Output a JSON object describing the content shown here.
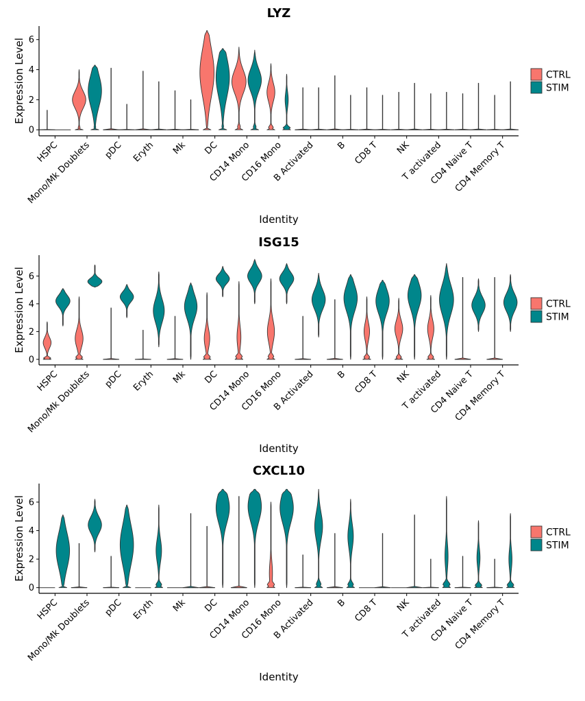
{
  "colors": {
    "CTRL": "#F8766D",
    "STIM": "#00868B",
    "outline": "#333333",
    "axis": "#000000"
  },
  "legend": {
    "entries": [
      "CTRL",
      "STIM"
    ],
    "placement": "right"
  },
  "chart_data": [
    {
      "type": "violin",
      "title": "LYZ",
      "xlabel": "Identity",
      "ylabel": "Expression Level",
      "ylim": [
        -0.4,
        6.9
      ],
      "yticks": [
        0,
        2,
        4,
        6
      ],
      "categories": [
        "HSPC",
        "Mono/Mk Doublets",
        "pDC",
        "Eryth",
        "Mk",
        "DC",
        "CD14 Mono",
        "CD16 Mono",
        "B Activated",
        "B",
        "CD8 T",
        "NK",
        "T activated",
        "CD4 Naive T",
        "CD4 Memory T"
      ],
      "series": [
        {
          "name": "CTRL",
          "max": [
            1.3,
            4.0,
            4.1,
            3.9,
            2.6,
            6.6,
            5.5,
            4.4,
            2.8,
            3.6,
            2.8,
            2.5,
            2.4,
            2.4,
            2.3
          ],
          "shape": [
            [
              "spike"
            ],
            [
              "bi",
              2.0,
              0.85,
              0.2
            ],
            [
              "spike"
            ],
            [
              "spike"
            ],
            [
              "spike"
            ],
            [
              "wide",
              3.8,
              0.9,
              0.1
            ],
            [
              "bi",
              3.2,
              0.9,
              0.3
            ],
            [
              "bi",
              2.5,
              0.5,
              0.5
            ],
            [
              "spike"
            ],
            [
              "spike"
            ],
            [
              "spike"
            ],
            [
              "spike"
            ],
            [
              "spike"
            ],
            [
              "spike"
            ],
            [
              "spike"
            ]
          ]
        },
        {
          "name": "STIM",
          "max": [
            0.0,
            4.3,
            1.7,
            3.2,
            2.0,
            5.4,
            5.3,
            3.7,
            2.8,
            2.3,
            2.3,
            3.1,
            2.5,
            3.1,
            3.2
          ],
          "shape": [
            [
              "none"
            ],
            [
              "wide",
              2.6,
              0.85,
              0.15
            ],
            [
              "spike"
            ],
            [
              "spike"
            ],
            [
              "spike"
            ],
            [
              "wide",
              3.5,
              0.85,
              0.15
            ],
            [
              "bi",
              3.3,
              0.85,
              0.3
            ],
            [
              "bi",
              2.0,
              0.2,
              0.75
            ],
            [
              "spike"
            ],
            [
              "spike"
            ],
            [
              "spike"
            ],
            [
              "spike"
            ],
            [
              "spike"
            ],
            [
              "spike"
            ],
            [
              "spike"
            ]
          ]
        }
      ]
    },
    {
      "type": "violin",
      "title": "ISG15",
      "xlabel": "Identity",
      "ylabel": "Expression Level",
      "ylim": [
        -0.4,
        7.5
      ],
      "yticks": [
        0,
        2,
        4,
        6
      ],
      "categories": [
        "HSPC",
        "Mono/Mk Doublets",
        "pDC",
        "Eryth",
        "Mk",
        "DC",
        "CD14 Mono",
        "CD16 Mono",
        "B Activated",
        "B",
        "CD8 T",
        "NK",
        "T activated",
        "CD4 Naive T",
        "CD4 Memory T"
      ],
      "series": [
        {
          "name": "CTRL",
          "max": [
            2.7,
            4.5,
            3.7,
            2.1,
            3.1,
            4.8,
            5.6,
            5.8,
            3.1,
            4.3,
            4.5,
            4.4,
            4.6,
            5.9,
            5.9
          ],
          "shape": [
            [
              "bi",
              1.2,
              0.5,
              0.75
            ],
            [
              "bi",
              1.5,
              0.5,
              0.7
            ],
            [
              "spike"
            ],
            [
              "spike"
            ],
            [
              "spike"
            ],
            [
              "bi",
              1.5,
              0.35,
              0.7
            ],
            [
              "bi",
              1.6,
              0.25,
              0.7
            ],
            [
              "bi",
              2.0,
              0.45,
              0.6
            ],
            [
              "spike"
            ],
            [
              "spike"
            ],
            [
              "bi",
              2.0,
              0.35,
              0.6
            ],
            [
              "bi",
              2.2,
              0.5,
              0.55
            ],
            [
              "bi",
              2.2,
              0.4,
              0.6
            ],
            [
              "spike"
            ],
            [
              "spike"
            ]
          ]
        },
        {
          "name": "STIM",
          "min": [
            2.4,
            5.2,
            3.0,
            0.9,
            0.0,
            4.5,
            4.0,
            4.0,
            1.6,
            0.0,
            0.0,
            0.0,
            0.0,
            2.0,
            2.0
          ],
          "max": [
            5.1,
            6.8,
            5.4,
            6.3,
            5.5,
            6.7,
            7.2,
            6.9,
            6.2,
            6.1,
            5.7,
            6.1,
            6.9,
            5.8,
            6.1
          ],
          "shape": [
            [
              "uni",
              4.2,
              0.9
            ],
            [
              "uni",
              5.6,
              0.9
            ],
            [
              "uni",
              4.5,
              0.85
            ],
            [
              "uni",
              3.5,
              0.7
            ],
            [
              "uni",
              3.8,
              0.8
            ],
            [
              "uni",
              5.8,
              0.85
            ],
            [
              "uni",
              6.0,
              0.9
            ],
            [
              "uni",
              5.8,
              0.9
            ],
            [
              "uni",
              4.3,
              0.85
            ],
            [
              "uni",
              4.4,
              0.85
            ],
            [
              "uni",
              4.2,
              0.85
            ],
            [
              "uni",
              4.6,
              0.85
            ],
            [
              "uni",
              4.3,
              0.9
            ],
            [
              "uni",
              3.9,
              0.85
            ],
            [
              "uni",
              4.1,
              0.85
            ]
          ]
        }
      ]
    },
    {
      "type": "violin",
      "title": "CXCL10",
      "xlabel": "Identity",
      "ylabel": "Expression Level",
      "ylim": [
        -0.4,
        7.3
      ],
      "yticks": [
        0,
        2,
        4,
        6
      ],
      "categories": [
        "HSPC",
        "Mono/Mk Doublets",
        "pDC",
        "Eryth",
        "Mk",
        "DC",
        "CD14 Mono",
        "CD16 Mono",
        "B Activated",
        "B",
        "CD8 T",
        "NK",
        "T activated",
        "CD4 Naive T",
        "CD4 Memory T"
      ],
      "series": [
        {
          "name": "CTRL",
          "max": [
            0.0,
            3.1,
            2.2,
            0.0,
            0.0,
            4.3,
            6.4,
            6.0,
            2.3,
            3.8,
            0.0,
            0.0,
            2.0,
            2.2,
            2.0
          ],
          "shape": [
            [
              "none"
            ],
            [
              "spike"
            ],
            [
              "spike"
            ],
            [
              "none"
            ],
            [
              "none"
            ],
            [
              "spike"
            ],
            [
              "spike"
            ],
            [
              "bi",
              1.0,
              0.2,
              0.75
            ],
            [
              "spike"
            ],
            [
              "spike"
            ],
            [
              "none"
            ],
            [
              "none"
            ],
            [
              "spike"
            ],
            [
              "spike"
            ],
            [
              "spike"
            ]
          ]
        },
        {
          "name": "STIM",
          "min": [
            0.0,
            2.5,
            0.0,
            0.0,
            0.0,
            0.0,
            0.0,
            0.0,
            0.0,
            0.0,
            0.0,
            0.0,
            0.0,
            0.0,
            0.0
          ],
          "max": [
            5.1,
            6.2,
            5.8,
            5.8,
            5.2,
            6.9,
            6.9,
            6.9,
            6.9,
            6.2,
            3.8,
            5.1,
            6.4,
            4.7,
            5.2
          ],
          "shape": [
            [
              "wide",
              2.6,
              0.85,
              0.15
            ],
            [
              "uni",
              4.4,
              0.85
            ],
            [
              "wide",
              3.0,
              0.85,
              0.15
            ],
            [
              "bi",
              2.6,
              0.35,
              0.6
            ],
            [
              "spike"
            ],
            [
              "uni",
              5.6,
              0.85
            ],
            [
              "uni",
              5.7,
              0.85
            ],
            [
              "uni",
              5.6,
              0.85
            ],
            [
              "bi",
              4.3,
              0.5,
              0.5
            ],
            [
              "bi",
              3.6,
              0.35,
              0.6
            ],
            [
              "spike"
            ],
            [
              "spike"
            ],
            [
              "bi",
              2.2,
              0.2,
              0.75
            ],
            [
              "bi",
              2.1,
              0.2,
              0.7
            ],
            [
              "bi",
              2.0,
              0.2,
              0.7
            ]
          ]
        }
      ]
    }
  ]
}
